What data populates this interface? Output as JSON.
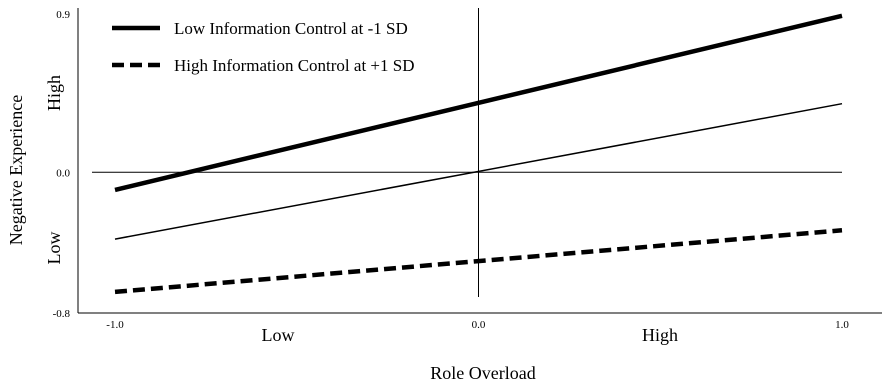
{
  "chart_data": {
    "type": "line",
    "title": "",
    "xlabel": "Role Overload",
    "ylabel": "Negative Experience",
    "xlim": [
      -1.0,
      1.0
    ],
    "ylim": [
      -0.8,
      0.9
    ],
    "x_ticks": [
      "-1.0",
      "0.0",
      "1.0"
    ],
    "y_ticks": [
      "0.9",
      "0.0",
      "-0.8"
    ],
    "x_annotations": [
      "Low",
      "High"
    ],
    "y_annotations": [
      "High",
      "Low"
    ],
    "grid": false,
    "legend_position": "top-left",
    "series": [
      {
        "name": "Low Information Control at  -1 SD",
        "style": "thick-solid",
        "x": [
          -1.0,
          1.0
        ],
        "y": [
          -0.1,
          0.89
        ]
      },
      {
        "name": "",
        "style": "thin-solid",
        "x": [
          -1.0,
          1.0
        ],
        "y": [
          -0.38,
          0.39
        ]
      },
      {
        "name": "High Information Control at +1 SD",
        "style": "thick-dashed",
        "x": [
          -1.0,
          1.0
        ],
        "y": [
          -0.68,
          -0.33
        ]
      }
    ],
    "colors": {
      "line": "#000000",
      "axis": "#000000"
    }
  }
}
